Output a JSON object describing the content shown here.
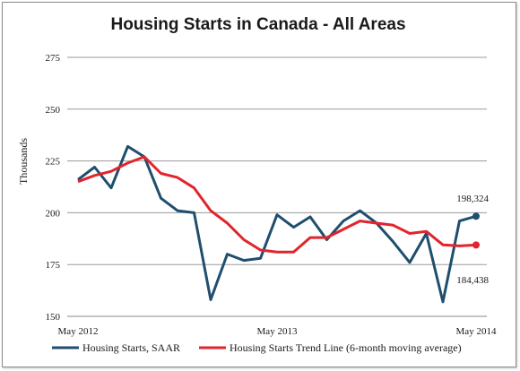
{
  "chart_data": {
    "type": "line",
    "title": "Housing Starts in Canada - All Areas",
    "ylabel": "Thousands",
    "xlabel": "",
    "ylim": [
      150,
      275
    ],
    "yticks": [
      150,
      175,
      200,
      225,
      250,
      275
    ],
    "x": [
      "May 2012",
      "Jun 2012",
      "Jul 2012",
      "Aug 2012",
      "Sep 2012",
      "Oct 2012",
      "Nov 2012",
      "Dec 2012",
      "Jan 2013",
      "Feb 2013",
      "Mar 2013",
      "Apr 2013",
      "May 2013",
      "Jun 2013",
      "Jul 2013",
      "Aug 2013",
      "Sep 2013",
      "Oct 2013",
      "Nov 2013",
      "Dec 2013",
      "Jan 2014",
      "Feb 2014",
      "Mar 2014",
      "Apr 2014",
      "May 2014"
    ],
    "xtick_labels": [
      "May 2012",
      "May 2013",
      "May 2014"
    ],
    "grid": true,
    "legend_position": "bottom",
    "series": [
      {
        "name": "Housing Starts, SAAR",
        "color": "#1f4e6e",
        "values": [
          216,
          222,
          212,
          232,
          227,
          207,
          201,
          200,
          158,
          180,
          177,
          178,
          199,
          193,
          198,
          187,
          196,
          201,
          195,
          186,
          176,
          190,
          157,
          196,
          198.324
        ],
        "end_label": "198,324"
      },
      {
        "name": "Housing Starts Trend Line (6-month moving average)",
        "color": "#e2242c",
        "values": [
          215,
          218,
          220,
          224,
          227,
          219,
          217,
          212,
          201,
          195,
          187,
          182,
          181,
          181,
          188,
          188,
          192,
          196,
          195,
          194,
          190,
          191,
          184.5,
          184,
          184.438
        ],
        "end_label": "184,438"
      }
    ]
  }
}
